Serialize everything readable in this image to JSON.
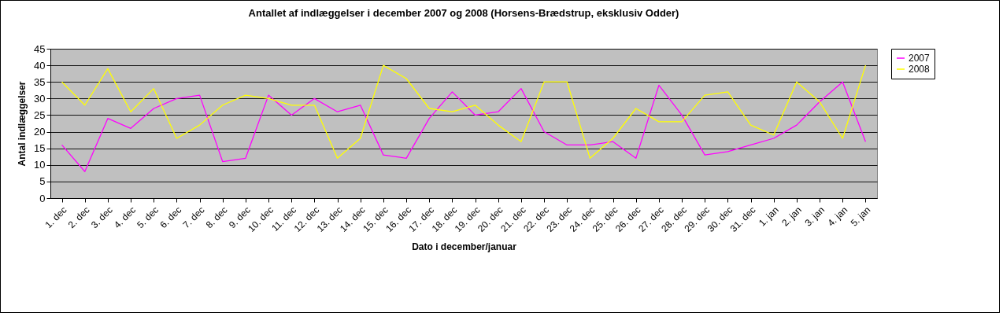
{
  "chart_data": {
    "type": "line",
    "title": "Antallet af indlæggelser i december 2007 og 2008 (Horsens-Brædstrup, eksklusiv Odder)",
    "xlabel": "Dato i december/januar",
    "ylabel": "Antal indlæggelser",
    "categories": [
      "1. dec",
      "2. dec",
      "3. dec",
      "4. dec",
      "5. dec",
      "6. dec",
      "7. dec",
      "8. dec",
      "9. dec",
      "10. dec",
      "11. dec",
      "12. dec",
      "13. dec",
      "14. dec",
      "15. dec",
      "16. dec",
      "17. dec",
      "18. dec",
      "19. dec",
      "20. dec",
      "21. dec",
      "22. dec",
      "23. dec",
      "24. dec",
      "25. dec",
      "26. dec",
      "27. dec",
      "28. dec",
      "29. dec",
      "30. dec",
      "31. dec",
      "1. jan",
      "2. jan",
      "3. jan",
      "4. jan",
      "5. jan"
    ],
    "series": [
      {
        "name": "2007",
        "color": "#ff00ff",
        "values": [
          16,
          8,
          24,
          21,
          27,
          30,
          31,
          11,
          12,
          31,
          25,
          30,
          26,
          28,
          13,
          12,
          24,
          32,
          25,
          26,
          33,
          20,
          16,
          16,
          17,
          12,
          34,
          25,
          13,
          14,
          16,
          18,
          22,
          29,
          35,
          17
        ]
      },
      {
        "name": "2008",
        "color": "#ffff00",
        "values": [
          35,
          28,
          39,
          26,
          33,
          18,
          22,
          28,
          31,
          30,
          28,
          28,
          12,
          18,
          40,
          36,
          27,
          26,
          28,
          22,
          17,
          35,
          35,
          12,
          18,
          27,
          23,
          23,
          31,
          32,
          22,
          19,
          35,
          29,
          18,
          40
        ]
      }
    ],
    "ylim": [
      0,
      45
    ],
    "yticks": [
      0,
      5,
      10,
      15,
      20,
      25,
      30,
      35,
      40,
      45
    ],
    "grid": "y",
    "legend": "right",
    "marker": "none",
    "line_style": "solid"
  }
}
